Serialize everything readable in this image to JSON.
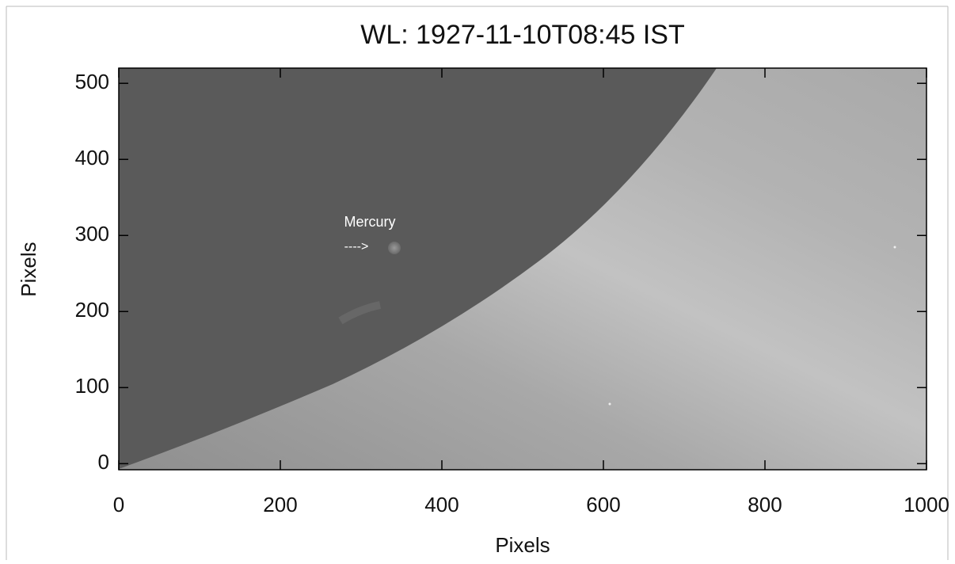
{
  "chart_data": {
    "type": "image",
    "title": "WL: 1927-11-10T08:45 IST",
    "x_label": "Pixels",
    "y_label": "Pixels",
    "xlim": [
      0,
      1000
    ],
    "ylim": [
      -8,
      520
    ],
    "xticks": [
      0,
      200,
      400,
      600,
      800,
      1000
    ],
    "yticks": [
      0,
      100,
      200,
      300,
      400,
      500
    ],
    "annotations": [
      {
        "text": "Mercury"
      },
      {
        "text": "---->"
      }
    ]
  }
}
